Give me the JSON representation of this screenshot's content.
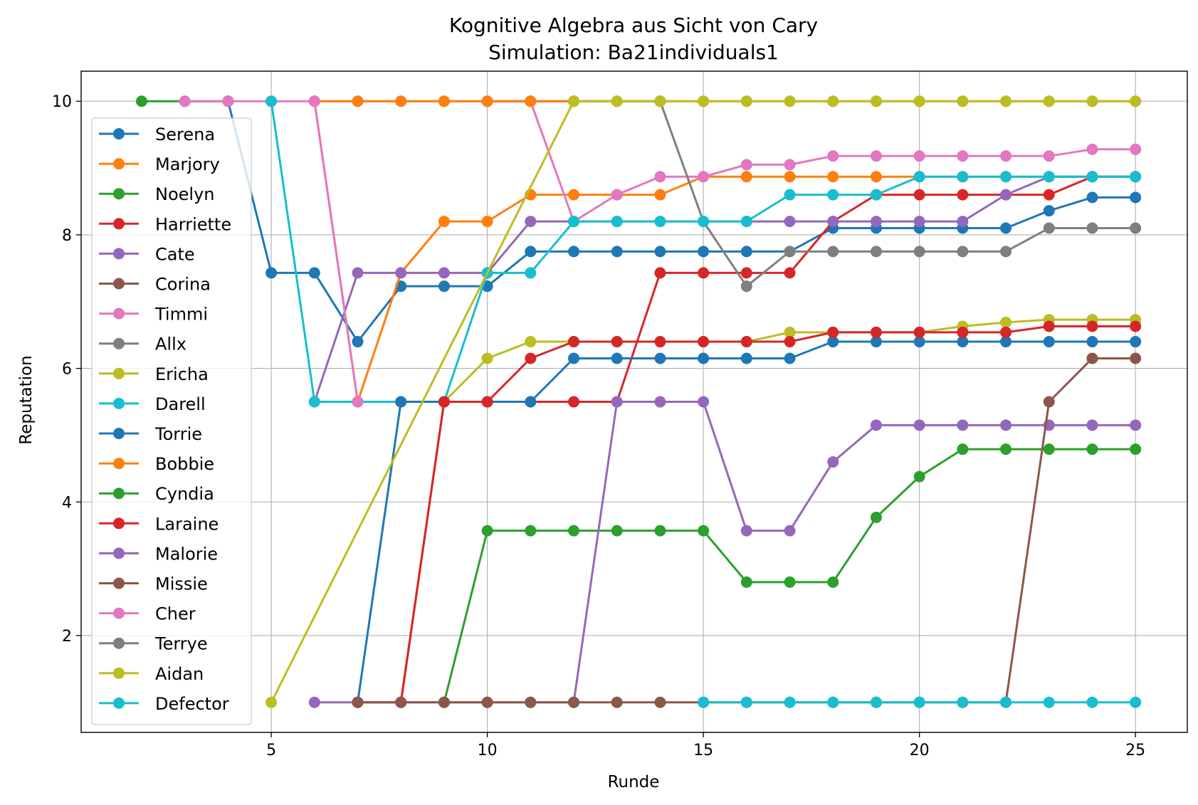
{
  "chart_data": {
    "type": "line",
    "title": "Kognitive Algebra aus Sicht von Cary",
    "subtitle": "Simulation: Ba21individuals1",
    "xlabel": "Runde",
    "ylabel": "Reputation",
    "xlim": [
      0.6,
      26.2
    ],
    "ylim": [
      0.55,
      10.45
    ],
    "xticks": [
      5,
      10,
      15,
      20,
      25
    ],
    "yticks": [
      2,
      4,
      6,
      8,
      10
    ],
    "grid": true,
    "legend_position": "upper-left",
    "series": [
      {
        "name": "Serena",
        "color": "#1f77b4",
        "x": [
          4,
          5,
          6,
          7,
          8,
          9,
          10,
          11,
          12,
          13,
          14,
          15,
          16,
          17,
          18,
          19,
          20,
          21,
          22,
          23,
          24,
          25
        ],
        "values": [
          10,
          7.43,
          7.43,
          6.4,
          7.23,
          7.23,
          7.23,
          7.75,
          7.75,
          7.75,
          7.75,
          7.75,
          7.75,
          7.75,
          8.1,
          8.1,
          8.1,
          8.1,
          8.1,
          8.36,
          8.56,
          8.56
        ]
      },
      {
        "name": "Marjory",
        "color": "#ff7f0e",
        "x": [
          6,
          7,
          8,
          9,
          10,
          11,
          12,
          13,
          14,
          15,
          16,
          17,
          18,
          19,
          20,
          21,
          22,
          23,
          24,
          25
        ],
        "values": [
          10,
          5.5,
          7.43,
          8.2,
          8.2,
          8.6,
          8.6,
          8.6,
          8.6,
          8.87,
          8.87,
          8.87,
          8.87,
          8.87,
          8.87,
          8.87,
          8.87,
          8.87,
          8.87,
          8.87
        ]
      },
      {
        "name": "Noelyn",
        "color": "#2ca02c",
        "x": [
          2,
          3,
          4
        ],
        "values": [
          10,
          10,
          10
        ]
      },
      {
        "name": "Harriette",
        "color": "#d62728",
        "x": [
          7,
          8,
          9,
          10,
          11,
          12,
          13,
          14,
          15,
          16,
          17,
          18,
          19,
          20,
          21,
          22,
          23,
          24,
          25
        ],
        "values": [
          1,
          1,
          5.5,
          5.5,
          5.5,
          5.5,
          5.5,
          7.43,
          7.43,
          7.43,
          7.43,
          8.2,
          8.6,
          8.6,
          8.6,
          8.6,
          8.6,
          8.87,
          8.87
        ]
      },
      {
        "name": "Cate",
        "color": "#9467bd",
        "x": [
          6,
          7,
          8,
          9,
          10,
          11,
          12,
          13,
          14,
          15,
          16,
          17,
          18,
          19,
          20,
          21,
          22,
          23,
          24,
          25
        ],
        "values": [
          5.5,
          7.43,
          7.43,
          7.43,
          7.43,
          8.2,
          8.2,
          8.2,
          8.2,
          8.2,
          8.2,
          8.2,
          8.2,
          8.2,
          8.2,
          8.2,
          8.6,
          8.87,
          8.87,
          8.87
        ]
      },
      {
        "name": "Corina",
        "color": "#8c564b",
        "x": [],
        "values": []
      },
      {
        "name": "Timmi",
        "color": "#e377c2",
        "x": [
          3,
          4,
          5,
          6,
          7,
          8,
          9,
          10,
          11,
          12,
          13,
          14,
          15,
          16,
          17,
          18,
          19,
          20,
          21,
          22,
          23,
          24,
          25
        ],
        "values": [
          10,
          10,
          10,
          10,
          10,
          10,
          10,
          10,
          10,
          8.2,
          8.6,
          8.87,
          8.87,
          9.05,
          9.05,
          9.18,
          9.18,
          9.18,
          9.18,
          9.18,
          9.18,
          9.28,
          9.28
        ]
      },
      {
        "name": "Allx",
        "color": "#7f7f7f",
        "x": [
          10,
          11,
          12,
          13,
          14,
          15,
          16,
          17,
          18,
          19,
          20,
          21,
          22,
          23,
          24,
          25
        ],
        "values": [
          10,
          10,
          10,
          10,
          10,
          8.2,
          7.23,
          7.75,
          7.75,
          7.75,
          7.75,
          7.75,
          7.75,
          8.1,
          8.1,
          8.1
        ]
      },
      {
        "name": "Ericha",
        "color": "#bcbd22",
        "x": [
          9,
          10,
          11,
          12,
          13,
          14,
          15,
          16,
          17,
          18,
          19,
          20,
          21,
          22,
          23,
          24,
          25
        ],
        "values": [
          5.5,
          6.15,
          6.4,
          6.4,
          6.4,
          6.4,
          6.4,
          6.4,
          6.54,
          6.54,
          6.54,
          6.54,
          6.63,
          6.69,
          6.73,
          6.73,
          6.73
        ]
      },
      {
        "name": "Darell",
        "color": "#17becf",
        "x": [
          5,
          6,
          7,
          8,
          9,
          10,
          11,
          12,
          13,
          14,
          15,
          16,
          17,
          18,
          19,
          20,
          21,
          22,
          23,
          24,
          25
        ],
        "values": [
          10,
          5.5,
          5.5,
          5.5,
          5.5,
          7.43,
          7.43,
          8.2,
          8.2,
          8.2,
          8.2,
          8.2,
          8.6,
          8.6,
          8.6,
          8.87,
          8.87,
          8.87,
          8.87,
          8.87,
          8.87
        ]
      },
      {
        "name": "Torrie",
        "color": "#1f77b4",
        "x": [
          7,
          8,
          9,
          10,
          11,
          12,
          13,
          14,
          15,
          16,
          17,
          18,
          19,
          20,
          21,
          22,
          23,
          24,
          25
        ],
        "values": [
          1,
          5.5,
          5.5,
          5.5,
          5.5,
          6.15,
          6.15,
          6.15,
          6.15,
          6.15,
          6.15,
          6.4,
          6.4,
          6.4,
          6.4,
          6.4,
          6.4,
          6.4,
          6.4
        ]
      },
      {
        "name": "Bobbie",
        "color": "#ff7f0e",
        "x": [
          6,
          7,
          8,
          9,
          10,
          11,
          12,
          13,
          14,
          15,
          16,
          17,
          18,
          19,
          20,
          21,
          22,
          23,
          24,
          25
        ],
        "values": [
          10,
          10,
          10,
          10,
          10,
          10,
          10,
          10,
          10,
          10,
          10,
          10,
          10,
          10,
          10,
          10,
          10,
          10,
          10,
          10
        ]
      },
      {
        "name": "Cyndia",
        "color": "#2ca02c",
        "x": [
          9,
          10,
          11,
          12,
          13,
          14,
          15,
          16,
          17,
          18,
          19,
          20,
          21,
          22,
          23,
          24,
          25
        ],
        "values": [
          1,
          3.57,
          3.57,
          3.57,
          3.57,
          3.57,
          3.57,
          2.8,
          2.8,
          2.8,
          3.77,
          4.38,
          4.79,
          4.79,
          4.79,
          4.79,
          4.79
        ]
      },
      {
        "name": "Laraine",
        "color": "#d62728",
        "x": [
          8,
          9,
          10,
          11,
          12,
          13,
          14,
          15,
          16,
          17,
          18,
          19,
          20,
          21,
          22,
          23,
          24,
          25
        ],
        "values": [
          1,
          5.5,
          5.5,
          6.15,
          6.4,
          6.4,
          6.4,
          6.4,
          6.4,
          6.4,
          6.54,
          6.54,
          6.54,
          6.54,
          6.54,
          6.63,
          6.63,
          6.63
        ]
      },
      {
        "name": "Malorie",
        "color": "#9467bd",
        "x": [
          6,
          7,
          8,
          9,
          10,
          11,
          12,
          13,
          14,
          15,
          16,
          17,
          18,
          19,
          20,
          21,
          22,
          23,
          24,
          25
        ],
        "values": [
          1,
          1,
          1,
          1,
          1,
          1,
          1,
          5.5,
          5.5,
          5.5,
          3.57,
          3.57,
          4.6,
          5.15,
          5.15,
          5.15,
          5.15,
          5.15,
          5.15,
          5.15
        ]
      },
      {
        "name": "Missie",
        "color": "#8c564b",
        "x": [
          7,
          8,
          9,
          10,
          11,
          12,
          13,
          14,
          15,
          16,
          17,
          18,
          19,
          20,
          21,
          22,
          23,
          24,
          25
        ],
        "values": [
          1,
          1,
          1,
          1,
          1,
          1,
          1,
          1,
          1,
          1,
          1,
          1,
          1,
          1,
          1,
          1,
          5.5,
          6.15,
          6.15
        ]
      },
      {
        "name": "Cher",
        "color": "#e377c2",
        "x": [
          6,
          7
        ],
        "values": [
          10,
          5.5
        ]
      },
      {
        "name": "Terrye",
        "color": "#7f7f7f",
        "x": [],
        "values": []
      },
      {
        "name": "Aidan",
        "color": "#bcbd22",
        "x": [
          5,
          12,
          13,
          14,
          15,
          16,
          17,
          18,
          19,
          20,
          21,
          22,
          23,
          24,
          25
        ],
        "values": [
          1,
          10,
          10,
          10,
          10,
          10,
          10,
          10,
          10,
          10,
          10,
          10,
          10,
          10,
          10
        ]
      },
      {
        "name": "Defector",
        "color": "#17becf",
        "x": [
          15,
          16,
          17,
          18,
          19,
          20,
          21,
          22,
          23,
          24,
          25
        ],
        "values": [
          1,
          1,
          1,
          1,
          1,
          1,
          1,
          1,
          1,
          1,
          1
        ]
      }
    ]
  }
}
